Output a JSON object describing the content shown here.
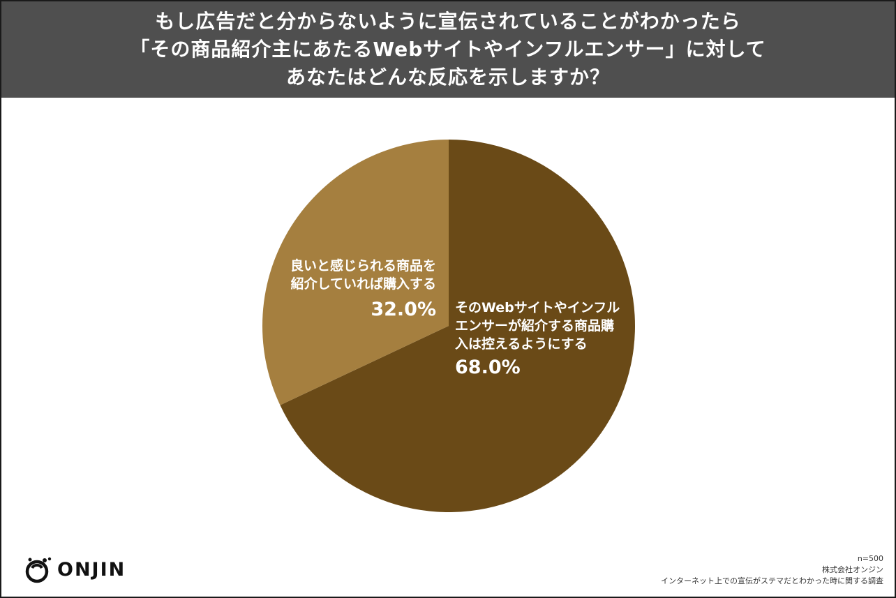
{
  "header": {
    "title_lines": [
      "もし広告だと分からないように宣伝されていることがわかったら",
      "「その商品紹介主にあたるWebサイトやインフルエンサー」に対して",
      "あなたはどんな反応を示しますか？"
    ]
  },
  "chart_data": {
    "type": "pie",
    "title": "もし広告だと分からないように宣伝されていることがわかったら「その商品紹介主にあたるWebサイトやインフルエンサー」に対してあなたはどんな反応を示しますか？",
    "slices": [
      {
        "label_lines": [
          "そのWebサイトやインフル",
          "エンサーが紹介する商品購",
          "入は控えるようにする"
        ],
        "value": 68.0,
        "value_label": "68.0%",
        "color": "#6a4a17"
      },
      {
        "label_lines": [
          "良いと感じられる商品を",
          "紹介していれば購入する"
        ],
        "value": 32.0,
        "value_label": "32.0%",
        "color": "#a57f3f"
      }
    ],
    "start": "12 o'clock",
    "direction": "clockwise"
  },
  "logo": {
    "text": "ONJIN",
    "icon": "onjin-logo-icon"
  },
  "notes": {
    "sample": "n=500",
    "company": "株式会社オンジン",
    "survey": "インターネット上での宣伝がステマだとわかった時に関する調査"
  }
}
